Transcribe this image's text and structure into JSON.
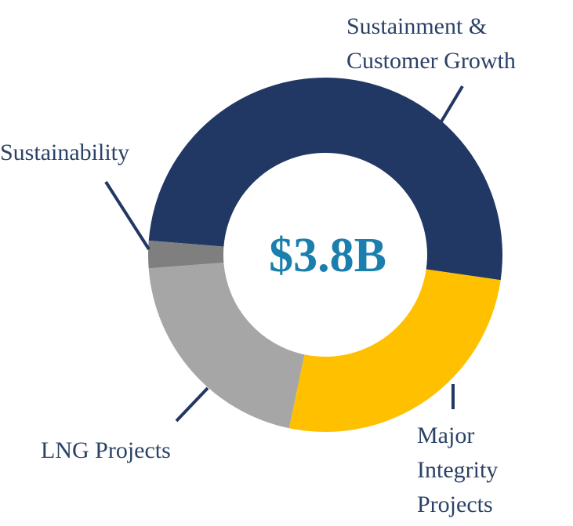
{
  "chart_data": {
    "type": "donut",
    "center_label": "$3.8B",
    "categories": [
      "Sustainment & Customer Growth",
      "Major Integrity Projects",
      "LNG Projects",
      "Sustainability"
    ],
    "values": [
      51,
      26,
      20.5,
      2.5
    ],
    "colors": [
      "#223864",
      "#ffc000",
      "#a6a6a6",
      "#7f7f7f"
    ]
  }
}
